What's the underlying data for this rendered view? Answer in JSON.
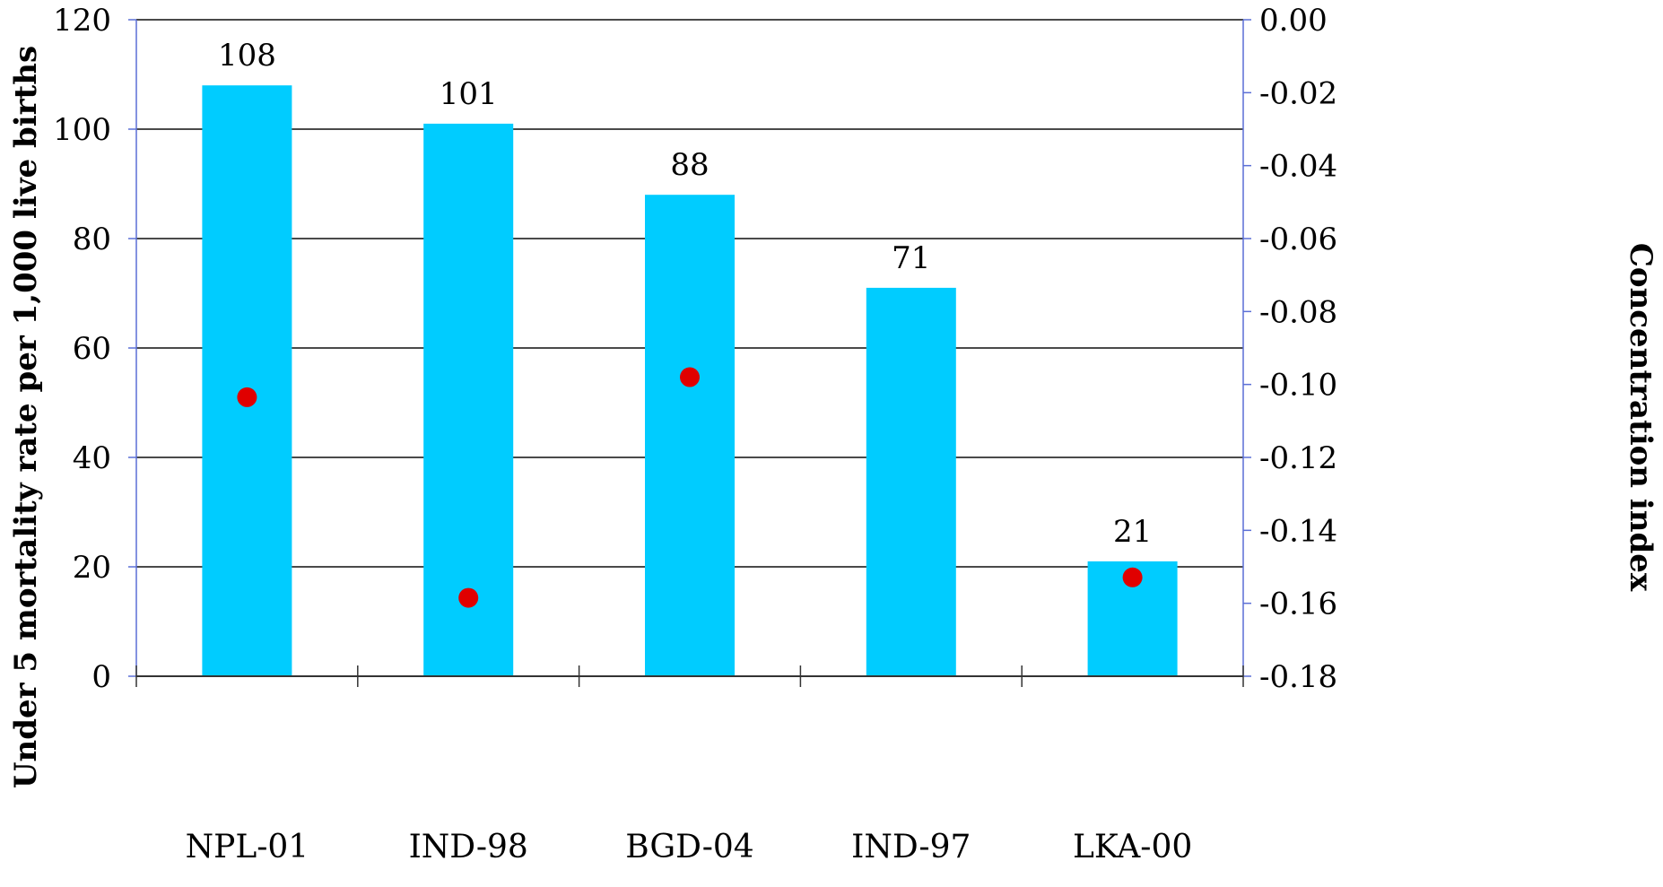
{
  "chart_data": {
    "type": "bar",
    "categories": [
      "NPL-01",
      "IND-98",
      "BGD-04",
      "IND-97",
      "LKA-00"
    ],
    "series": [
      {
        "axis": "left",
        "type": "bar",
        "values": [
          108,
          101,
          88,
          71,
          21
        ],
        "data_labels": [
          "108",
          "101",
          "88",
          "71",
          "21"
        ],
        "color": "#00CCFF"
      },
      {
        "axis": "right",
        "type": "scatter",
        "values": [
          -0.1035,
          -0.1585,
          -0.098,
          null,
          -0.1529
        ],
        "color": "#E00000"
      }
    ],
    "ylabel": "Under 5 mortality rate per 1,000 live births",
    "y2label": "Concentration index",
    "ylim": [
      0,
      120
    ],
    "y2lim": [
      -0.18,
      0.0
    ],
    "yticks": [
      "0",
      "20",
      "40",
      "60",
      "80",
      "100",
      "120"
    ],
    "y2ticks": [
      "0.00",
      "-0.02",
      "-0.04",
      "-0.06",
      "-0.08",
      "-0.10",
      "-0.12",
      "-0.14",
      "-0.16",
      "-0.18"
    ],
    "grid": true,
    "colors": {
      "bar": "#00CCFF",
      "marker": "#E00000",
      "grid": "#4a4a4a",
      "axis": "#5b6fd6"
    }
  }
}
